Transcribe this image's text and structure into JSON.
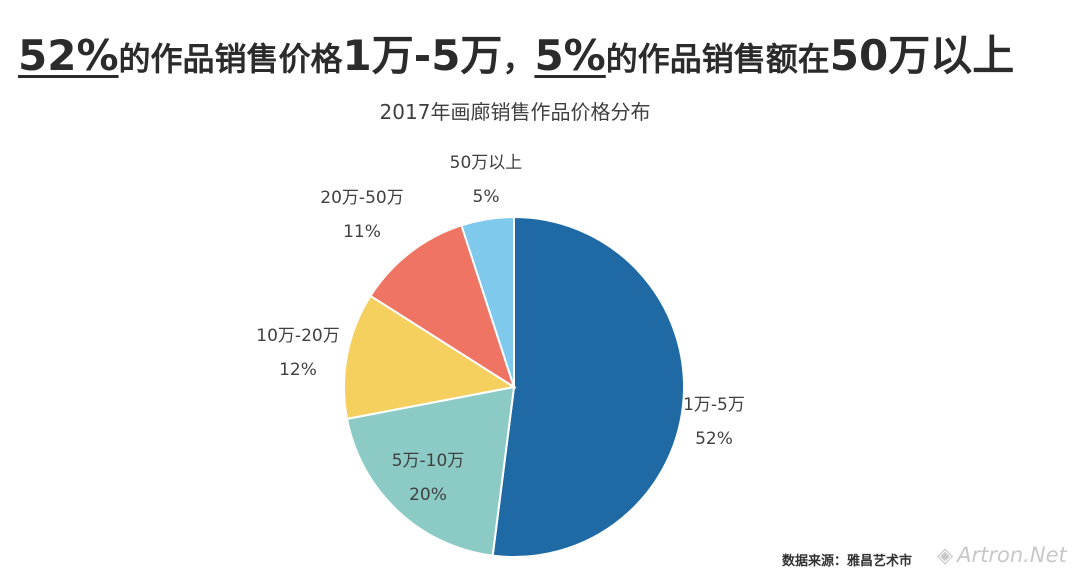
{
  "headline": {
    "pct1": "52%",
    "text1": "的作品销售价格",
    "range": "1万-5万",
    "sep": "，",
    "pct2": "5%",
    "text2": "的作品销售额在",
    "amount": "50万以上"
  },
  "chart_data": {
    "type": "pie",
    "title": "2017年画廊销售作品价格分布",
    "start_angle": "12 o'clock",
    "direction": "clockwise",
    "slices": [
      {
        "label": "1万-5万",
        "value": 52,
        "value_label": "52%",
        "color": "#1f6aa5"
      },
      {
        "label": "5万-10万",
        "value": 20,
        "value_label": "20%",
        "color": "#8ccbc5"
      },
      {
        "label": "10万-20万",
        "value": 12,
        "value_label": "12%",
        "color": "#f6d05e"
      },
      {
        "label": "20万-50万",
        "value": 11,
        "value_label": "11%",
        "color": "#ef7463"
      },
      {
        "label": "50万以上",
        "value": 5,
        "value_label": "5%",
        "color": "#7ec9ec"
      }
    ]
  },
  "footer": {
    "source": "数据来源：雅昌艺术市",
    "watermark": "Artron.Net"
  }
}
